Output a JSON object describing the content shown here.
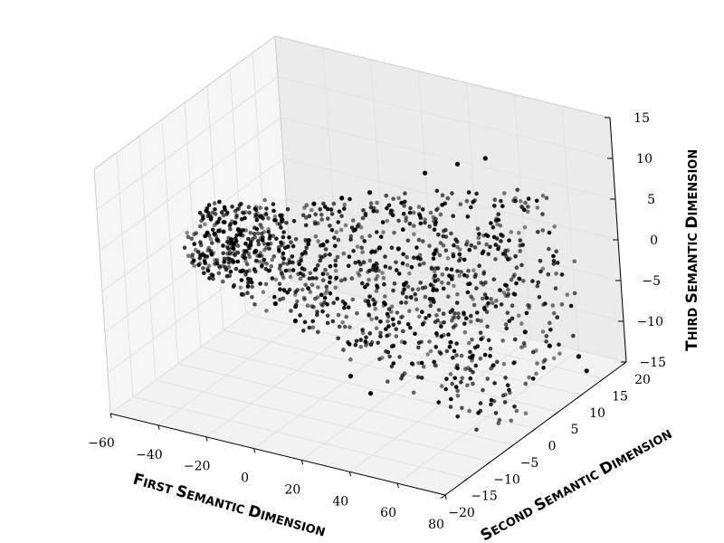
{
  "chart_data": {
    "type": "scatter",
    "projection": "3d",
    "title": "",
    "xlabel": "First Semantic Dimension",
    "ylabel": "Second Semantic Dimension",
    "zlabel": "Third Semantic Dimension",
    "xlim": [
      -60,
      80
    ],
    "ylim": [
      -20,
      20
    ],
    "zlim": [
      -15,
      15
    ],
    "xticks": [
      -60,
      -40,
      -20,
      0,
      20,
      40,
      60,
      80
    ],
    "yticks": [
      -20,
      -15,
      -10,
      -5,
      0,
      5,
      10,
      15,
      20
    ],
    "zticks": [
      -15,
      -10,
      -5,
      0,
      5,
      10,
      15
    ],
    "xtick_labels": [
      "−60",
      "−40",
      "−20",
      "0",
      "20",
      "40",
      "60",
      "80"
    ],
    "ytick_labels": [
      "−20",
      "−15",
      "−10",
      "−5",
      "0",
      "5",
      "10",
      "15",
      "20"
    ],
    "ztick_labels": [
      "−15",
      "−10",
      "−5",
      "0",
      "5",
      "10",
      "15"
    ],
    "grid": true,
    "legend": false,
    "series": [
      {
        "marker_color": "#000000",
        "description_of_shape": "dense cone of points; apex near x=-55, widening toward x=75 with a hollow elliptical cross-section (y from -15 to 15, z from -15 to 12); spiral rings near the apex",
        "points": [
          [
            -55,
            0,
            -1
          ],
          [
            -53,
            1,
            -1
          ],
          [
            -52,
            -1,
            0
          ],
          [
            -48,
            2,
            -2
          ],
          [
            -46,
            -2,
            0
          ],
          [
            -44,
            1,
            1
          ],
          [
            -40,
            3,
            -3
          ],
          [
            -38,
            -3,
            1
          ],
          [
            -35,
            2,
            2
          ],
          [
            -32,
            -4,
            -2
          ],
          [
            -30,
            4,
            1
          ],
          [
            -26,
            -5,
            2
          ],
          [
            -20,
            6,
            3
          ],
          [
            -15,
            -6,
            -4
          ],
          [
            -10,
            7,
            4
          ],
          [
            -5,
            -7,
            -5
          ],
          [
            0,
            8,
            5
          ],
          [
            5,
            -8,
            6
          ],
          [
            10,
            9,
            -6
          ],
          [
            15,
            -10,
            7
          ],
          [
            20,
            10,
            8
          ],
          [
            25,
            -11,
            -8
          ],
          [
            30,
            12,
            9
          ],
          [
            35,
            -12,
            -9
          ],
          [
            40,
            13,
            10
          ],
          [
            45,
            -13,
            10
          ],
          [
            50,
            14,
            -11
          ],
          [
            55,
            -14,
            11
          ],
          [
            60,
            14,
            -12
          ],
          [
            65,
            -15,
            11
          ],
          [
            70,
            15,
            -13
          ],
          [
            72,
            -15,
            12
          ],
          [
            75,
            14,
            -14
          ]
        ]
      }
    ]
  }
}
